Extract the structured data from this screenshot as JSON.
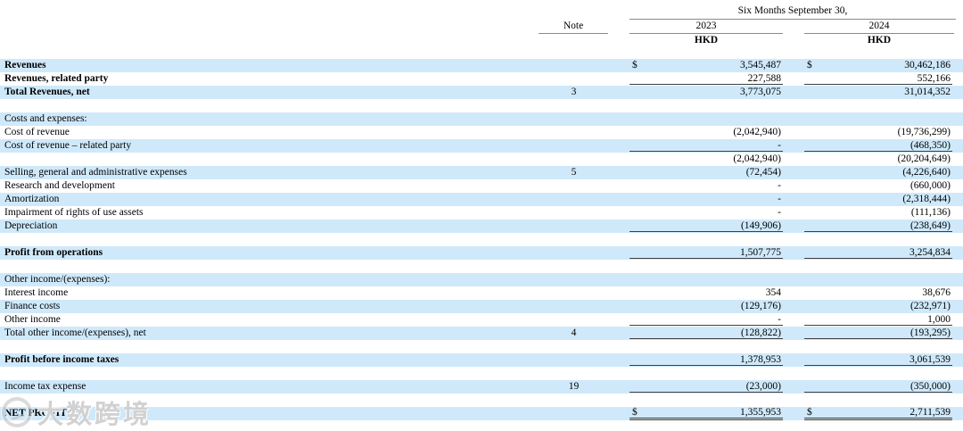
{
  "table": {
    "period_header": "Six Months September 30,",
    "note_header": "Note",
    "currency_symbol": "$",
    "columns": [
      {
        "year": "2023",
        "currency": "HKD"
      },
      {
        "year": "2024",
        "currency": "HKD"
      }
    ],
    "rows": [
      {
        "label": "Revenues",
        "bold": true,
        "shade": "blue",
        "dollar": true,
        "v2023": "3,545,487",
        "v2024": "30,462,186",
        "underline": "none"
      },
      {
        "label": "Revenues, related party",
        "bold": true,
        "shade": "white",
        "v2023": "227,588",
        "v2024": "552,166",
        "underline": "single"
      },
      {
        "label": "Total Revenues, net",
        "bold": true,
        "shade": "blue",
        "note": "3",
        "v2023": "3,773,075",
        "v2024": "31,014,352",
        "underline": "none"
      },
      {
        "spacer": true,
        "shade": "white"
      },
      {
        "label": "Costs and expenses:",
        "shade": "blue",
        "underline": "none"
      },
      {
        "label": "Cost of revenue",
        "shade": "white",
        "v2023": "(2,042,940)",
        "v2024": "(19,736,299)",
        "underline": "none"
      },
      {
        "label": "Cost of revenue – related party",
        "shade": "blue",
        "v2023": "-",
        "v2024": "(468,350)",
        "underline": "single"
      },
      {
        "label": "",
        "shade": "white",
        "v2023": "(2,042,940)",
        "v2024": "(20,204,649)",
        "underline": "none"
      },
      {
        "label": "Selling, general and administrative expenses",
        "shade": "blue",
        "note": "5",
        "v2023": "(72,454)",
        "v2024": "(4,226,640)",
        "underline": "none"
      },
      {
        "label": "Research and development",
        "shade": "white",
        "v2023": "-",
        "v2024": "(660,000)",
        "underline": "none"
      },
      {
        "label": "Amortization",
        "shade": "blue",
        "v2023": "-",
        "v2024": "(2,318,444)",
        "underline": "none"
      },
      {
        "label": "Impairment of rights of use assets",
        "shade": "white",
        "v2023": "-",
        "v2024": "(111,136)",
        "underline": "none"
      },
      {
        "label": "Depreciation",
        "shade": "blue",
        "v2023": "(149,906)",
        "v2024": "(238,649)",
        "underline": "single"
      },
      {
        "spacer": true,
        "shade": "white"
      },
      {
        "label": "Profit from operations",
        "bold": true,
        "shade": "blue",
        "v2023": "1,507,775",
        "v2024": "3,254,834",
        "underline": "single"
      },
      {
        "spacer": true,
        "shade": "white"
      },
      {
        "label": "Other income/(expenses):",
        "shade": "blue",
        "underline": "none"
      },
      {
        "label": "Interest income",
        "shade": "white",
        "v2023": "354",
        "v2024": "38,676",
        "underline": "none"
      },
      {
        "label": "Finance costs",
        "shade": "blue",
        "v2023": "(129,176)",
        "v2024": "(232,971)",
        "underline": "none"
      },
      {
        "label": "Other income",
        "shade": "white",
        "v2023": "-",
        "v2024": "1,000",
        "underline": "single"
      },
      {
        "label": "Total other income/(expenses), net",
        "shade": "blue",
        "note": "4",
        "v2023": "(128,822)",
        "v2024": "(193,295)",
        "underline": "single"
      },
      {
        "spacer": true,
        "shade": "white"
      },
      {
        "label": "Profit before income taxes",
        "bold": true,
        "shade": "blue",
        "v2023": "1,378,953",
        "v2024": "3,061,539",
        "underline": "single"
      },
      {
        "spacer": true,
        "shade": "white"
      },
      {
        "label": "Income tax expense",
        "shade": "blue",
        "note": "19",
        "v2023": "(23,000)",
        "v2024": "(350,000)",
        "underline": "single"
      },
      {
        "spacer": true,
        "shade": "white"
      },
      {
        "label": "NET PROFIT",
        "bold": true,
        "shade": "blue",
        "dollar": true,
        "v2023": "1,355,953",
        "v2024": "2,711,539",
        "underline": "double"
      }
    ]
  },
  "watermark": {
    "text": "大数跨境",
    "icon": "circle-scribble-logo"
  },
  "colors": {
    "band_blue": "#cfe9fb",
    "rule_gray": "#8a8a8a",
    "rule_dark": "#3f3f3f"
  }
}
